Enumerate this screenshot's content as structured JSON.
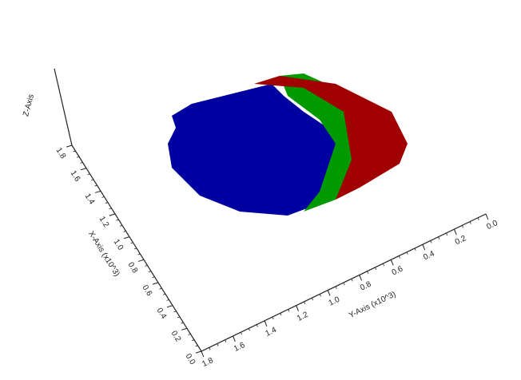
{
  "chart_data": {
    "type": "voxel",
    "xlabel": "X-Axis (x10^3)",
    "ylabel": "Y-Axis (x10^3)",
    "zlabel": "Z-Axis",
    "xlim": [
      0,
      1.8
    ],
    "xticks": [
      {
        "value": 0,
        "label": "0.0"
      },
      0.2,
      0.4,
      0.6,
      0.8,
      {
        "value": 1,
        "label": "1.0"
      },
      1.2,
      1.4,
      1.6,
      1.8
    ],
    "ylim": [
      0,
      1.8
    ],
    "yticks": [
      {
        "value": 0,
        "label": "0.0"
      },
      0.2,
      0.4,
      0.6,
      0.8,
      {
        "value": 1,
        "label": "1.0"
      },
      1.2,
      1.4,
      1.6,
      1.8
    ],
    "colors": [
      "#a00000",
      "#009900",
      "#0000a0"
    ]
  }
}
